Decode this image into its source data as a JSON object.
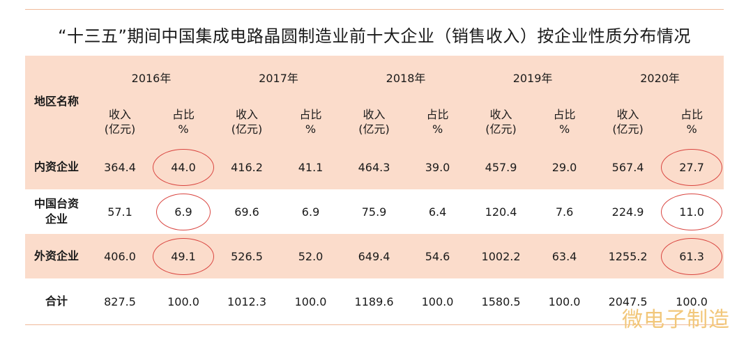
{
  "title": "“十三五”期间中国集成电路晶圆制造业前十大企业（销售收入）按企业性质分布情况",
  "header": {
    "region_label": "地区名称",
    "years": [
      "2016年",
      "2017年",
      "2018年",
      "2019年",
      "2020年"
    ],
    "revenue_label_line1": "收入",
    "revenue_label_line2": "(亿元)",
    "share_label_line1": "占比",
    "share_label_line2": "%"
  },
  "rows": [
    {
      "name_line1": "内资企业",
      "name_line2": "",
      "values": [
        "364.4",
        "44.0",
        "416.2",
        "41.1",
        "464.3",
        "39.0",
        "457.9",
        "29.0",
        "567.4",
        "27.7"
      ]
    },
    {
      "name_line1": "中国台资",
      "name_line2": "企业",
      "values": [
        "57.1",
        "6.9",
        "69.6",
        "6.9",
        "75.9",
        "6.4",
        "120.4",
        "7.6",
        "224.9",
        "11.0"
      ]
    },
    {
      "name_line1": "外资企业",
      "name_line2": "",
      "values": [
        "406.0",
        "49.1",
        "526.5",
        "52.0",
        "649.4",
        "54.6",
        "1002.2",
        "63.4",
        "1255.2",
        "61.3"
      ]
    },
    {
      "name_line1": "合计",
      "name_line2": "",
      "values": [
        "827.5",
        "100.0",
        "1012.3",
        "100.0",
        "1189.6",
        "100.0",
        "1580.5",
        "100.0",
        "2047.5",
        "100.0"
      ]
    }
  ],
  "highlight_color": "#d9443f",
  "shade_color": "#fbdccb",
  "watermark": "微电子制造"
}
